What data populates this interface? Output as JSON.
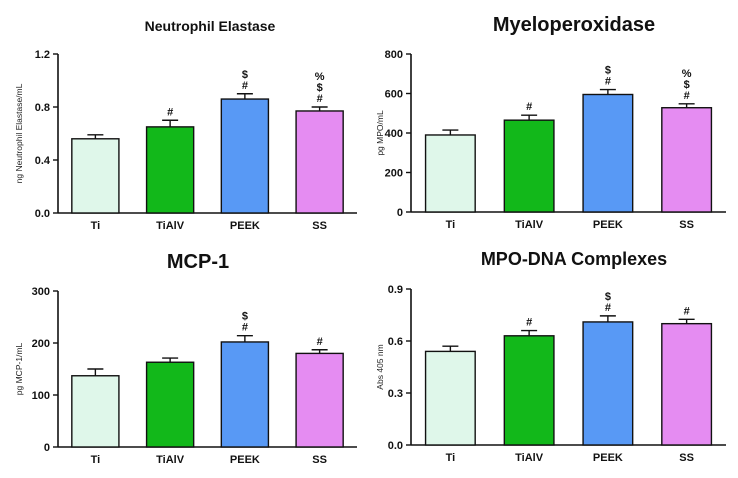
{
  "chart_data": [
    {
      "type": "bar",
      "title": "Neutrophil Elastase",
      "ylabel": "ng Neutrophil Elastase/mL",
      "xlabel": "",
      "ylim": [
        0,
        1.2
      ],
      "yticks": [
        "0.0",
        "0.4",
        "0.8",
        "1.2"
      ],
      "categories": [
        "Ti",
        "TiAlV",
        "PEEK",
        "SS"
      ],
      "values": [
        0.56,
        0.65,
        0.86,
        0.77
      ],
      "errors": [
        0.03,
        0.05,
        0.04,
        0.03
      ],
      "annotations": [
        [],
        [
          "#"
        ],
        [
          "$",
          "#"
        ],
        [
          "%",
          "$",
          "#"
        ]
      ],
      "colors": [
        "#dff7ea",
        "#12b81a",
        "#5899f5",
        "#e58cf2"
      ]
    },
    {
      "type": "bar",
      "title": "Myeloperoxidase",
      "ylabel": "pg MPO/mL",
      "xlabel": "",
      "ylim": [
        0,
        800
      ],
      "yticks": [
        "0",
        "200",
        "400",
        "600",
        "800"
      ],
      "categories": [
        "Ti",
        "TiAlV",
        "PEEK",
        "SS"
      ],
      "values": [
        390,
        465,
        595,
        528
      ],
      "errors": [
        25,
        25,
        25,
        20
      ],
      "annotations": [
        [],
        [
          "#"
        ],
        [
          "$",
          "#"
        ],
        [
          "%",
          "$",
          "#"
        ]
      ],
      "colors": [
        "#dff7ea",
        "#12b81a",
        "#5899f5",
        "#e58cf2"
      ]
    },
    {
      "type": "bar",
      "title": "MCP-1",
      "ylabel": "pg MCP-1/mL",
      "xlabel": "",
      "ylim": [
        0,
        300
      ],
      "yticks": [
        "0",
        "100",
        "200",
        "300"
      ],
      "categories": [
        "Ti",
        "TiAlV",
        "PEEK",
        "SS"
      ],
      "values": [
        137,
        163,
        202,
        180
      ],
      "errors": [
        13,
        8,
        12,
        7
      ],
      "annotations": [
        [],
        [],
        [
          "$",
          "#"
        ],
        [
          "#"
        ]
      ],
      "colors": [
        "#dff7ea",
        "#12b81a",
        "#5899f5",
        "#e58cf2"
      ]
    },
    {
      "type": "bar",
      "title": "MPO-DNA Complexes",
      "ylabel": "Abs 405 nm",
      "xlabel": "",
      "ylim": [
        0,
        0.9
      ],
      "yticks": [
        "0.0",
        "0.3",
        "0.6",
        "0.9"
      ],
      "categories": [
        "Ti",
        "TiAlV",
        "PEEK",
        "SS"
      ],
      "values": [
        0.54,
        0.63,
        0.71,
        0.7
      ],
      "errors": [
        0.03,
        0.03,
        0.035,
        0.025
      ],
      "annotations": [
        [],
        [
          "#"
        ],
        [
          "$",
          "#"
        ],
        [
          "#"
        ]
      ],
      "colors": [
        "#dff7ea",
        "#12b81a",
        "#5899f5",
        "#e58cf2"
      ]
    }
  ]
}
